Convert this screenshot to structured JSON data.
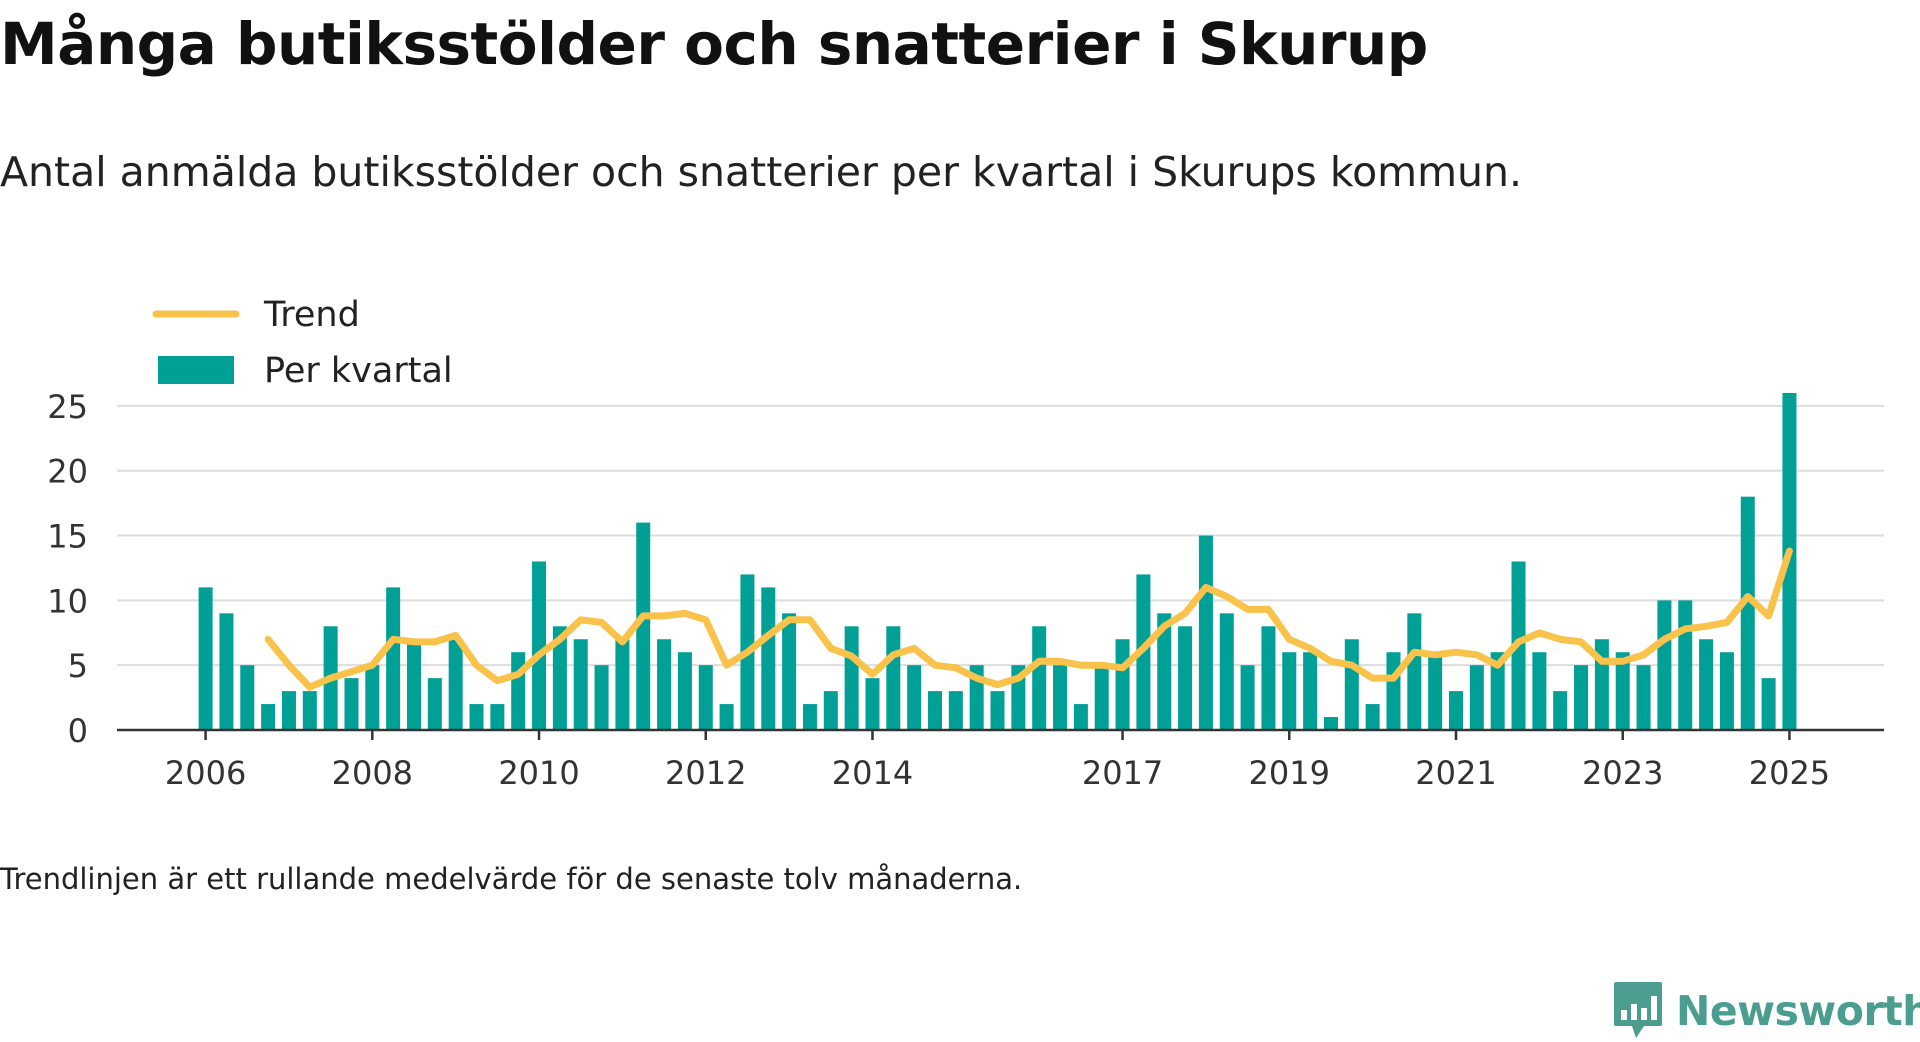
{
  "title": "Många butiksstölder och snatterier i Skurup",
  "subtitle": "Antal anmälda butiksstölder och snatterier per kvartal i Skurups kommun.",
  "footnote": "Trendlinjen är ett rullande medelvärde för de senaste tolv månaderna.",
  "logo": {
    "text": "Newsworthy",
    "icon": "bar-chart-speech-bubble-icon"
  },
  "colors": {
    "bar": "#00a096",
    "trend": "#f9c24b",
    "grid": "#dddddd",
    "axis": "#333333",
    "text": "#333333",
    "brand": "#4a9d8f"
  },
  "chart_data": {
    "type": "bar",
    "title": "",
    "xlabel": "",
    "ylabel": "",
    "ylim": [
      0,
      27
    ],
    "yticks": [
      "0",
      "5",
      "10",
      "15",
      "20",
      "25"
    ],
    "xticks": [
      "2006",
      "2008",
      "2010",
      "2012",
      "2014",
      "2017",
      "2019",
      "2021",
      "2023",
      "2025"
    ],
    "xtick_quarters": [
      0,
      8,
      16,
      24,
      32,
      44,
      52,
      60,
      68,
      76
    ],
    "grid": true,
    "legend_position": "top-left",
    "series": [
      {
        "name": "Trend",
        "type": "line",
        "start_quarter": 3,
        "values": [
          7.0,
          5.0,
          3.3,
          4.0,
          4.5,
          5.0,
          7.0,
          6.8,
          6.8,
          7.3,
          5.0,
          3.8,
          4.3,
          5.8,
          7.0,
          8.5,
          8.3,
          6.8,
          8.8,
          8.8,
          9.0,
          8.5,
          5.0,
          6.0,
          7.3,
          8.5,
          8.5,
          6.3,
          5.7,
          4.3,
          5.8,
          6.3,
          5.0,
          4.8,
          4.0,
          3.5,
          4.0,
          5.3,
          5.3,
          5.0,
          5.0,
          4.8,
          6.3,
          8.0,
          9.0,
          11.0,
          10.3,
          9.3,
          9.3,
          7.0,
          6.3,
          5.3,
          5.0,
          4.0,
          4.0,
          6.0,
          5.8,
          6.0,
          5.8,
          5.0,
          6.8,
          7.5,
          7.0,
          6.8,
          5.3,
          5.3,
          5.8,
          7.0,
          7.8,
          8.0,
          8.3,
          10.3,
          8.8,
          13.8
        ]
      },
      {
        "name": "Per kvartal",
        "type": "bar",
        "start_quarter": 0,
        "values": [
          11,
          9,
          5,
          2,
          3,
          3,
          8,
          4,
          5,
          11,
          7,
          4,
          7,
          2,
          2,
          6,
          13,
          8,
          7,
          5,
          7,
          16,
          7,
          6,
          5,
          2,
          12,
          11,
          9,
          2,
          3,
          8,
          4,
          8,
          5,
          3,
          3,
          5,
          3,
          5,
          8,
          5,
          2,
          5,
          7,
          12,
          9,
          8,
          15,
          9,
          5,
          8,
          6,
          6,
          1,
          7,
          2,
          6,
          9,
          6,
          3,
          5,
          6,
          13,
          6,
          3,
          5,
          7,
          6,
          5,
          10,
          10,
          7,
          6,
          18,
          4,
          26
        ]
      }
    ]
  }
}
